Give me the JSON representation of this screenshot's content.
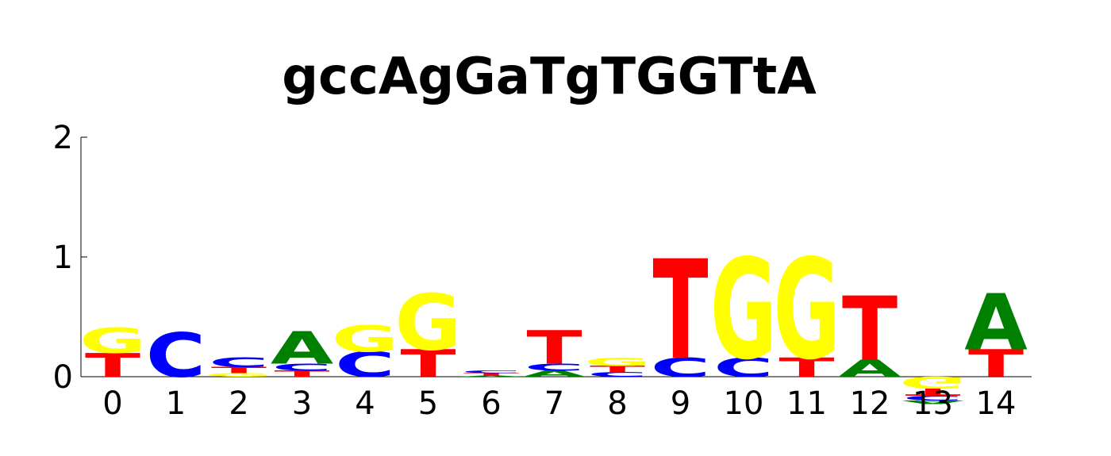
{
  "chart_data": {
    "type": "sequence-logo",
    "title": "gccAgGaTgTGGTtA",
    "xlabel": "",
    "ylabel": "",
    "ylim": [
      0,
      2
    ],
    "yticks": [
      "0",
      "1",
      "2"
    ],
    "xticks": [
      "0",
      "1",
      "2",
      "3",
      "4",
      "5",
      "6",
      "7",
      "8",
      "9",
      "10",
      "11",
      "12",
      "13",
      "14"
    ],
    "colors": {
      "A": "#008000",
      "C": "#0000ff",
      "G": "#ffff00",
      "T": "#ff0000"
    },
    "positions": [
      {
        "pos": "0",
        "stack": [
          {
            "base": "T",
            "height": 0.2
          },
          {
            "base": "G",
            "height": 0.21
          }
        ]
      },
      {
        "pos": "1",
        "stack": [
          {
            "base": "C",
            "height": 0.37
          }
        ]
      },
      {
        "pos": "2",
        "stack": [
          {
            "base": "G",
            "height": 0.03
          },
          {
            "base": "T",
            "height": 0.05
          },
          {
            "base": "C",
            "height": 0.08
          }
        ]
      },
      {
        "pos": "3",
        "stack": [
          {
            "base": "T",
            "height": 0.05
          },
          {
            "base": "C",
            "height": 0.06
          },
          {
            "base": "A",
            "height": 0.27
          }
        ]
      },
      {
        "pos": "4",
        "stack": [
          {
            "base": "C",
            "height": 0.21
          },
          {
            "base": "G",
            "height": 0.22
          }
        ]
      },
      {
        "pos": "5",
        "stack": [
          {
            "base": "T",
            "height": 0.23
          },
          {
            "base": "G",
            "height": 0.47
          }
        ]
      },
      {
        "pos": "6",
        "stack": [
          {
            "base": "A",
            "height": 0.01
          },
          {
            "base": "T",
            "height": 0.02
          },
          {
            "base": "C",
            "height": 0.02
          }
        ]
      },
      {
        "pos": "7",
        "stack": [
          {
            "base": "A",
            "height": 0.05
          },
          {
            "base": "C",
            "height": 0.06
          },
          {
            "base": "T",
            "height": 0.28
          }
        ]
      },
      {
        "pos": "8",
        "stack": [
          {
            "base": "C",
            "height": 0.04
          },
          {
            "base": "T",
            "height": 0.05
          },
          {
            "base": "G",
            "height": 0.07
          }
        ]
      },
      {
        "pos": "9",
        "stack": [
          {
            "base": "C",
            "height": 0.16
          },
          {
            "base": "T",
            "height": 0.83
          }
        ]
      },
      {
        "pos": "10",
        "stack": [
          {
            "base": "C",
            "height": 0.16
          },
          {
            "base": "G",
            "height": 0.84
          }
        ]
      },
      {
        "pos": "11",
        "stack": [
          {
            "base": "T",
            "height": 0.16
          },
          {
            "base": "G",
            "height": 0.84
          }
        ]
      },
      {
        "pos": "12",
        "stack": [
          {
            "base": "A",
            "height": 0.14
          },
          {
            "base": "T",
            "height": 0.54
          }
        ]
      },
      {
        "pos": "13",
        "stack": [
          {
            "base": "G",
            "height": -0.1
          },
          {
            "base": "T",
            "height": -0.06
          },
          {
            "base": "C",
            "height": -0.04
          },
          {
            "base": "A",
            "height": -0.03
          }
        ]
      },
      {
        "pos": "14",
        "stack": [
          {
            "base": "T",
            "height": 0.23
          },
          {
            "base": "A",
            "height": 0.47
          }
        ]
      }
    ]
  }
}
